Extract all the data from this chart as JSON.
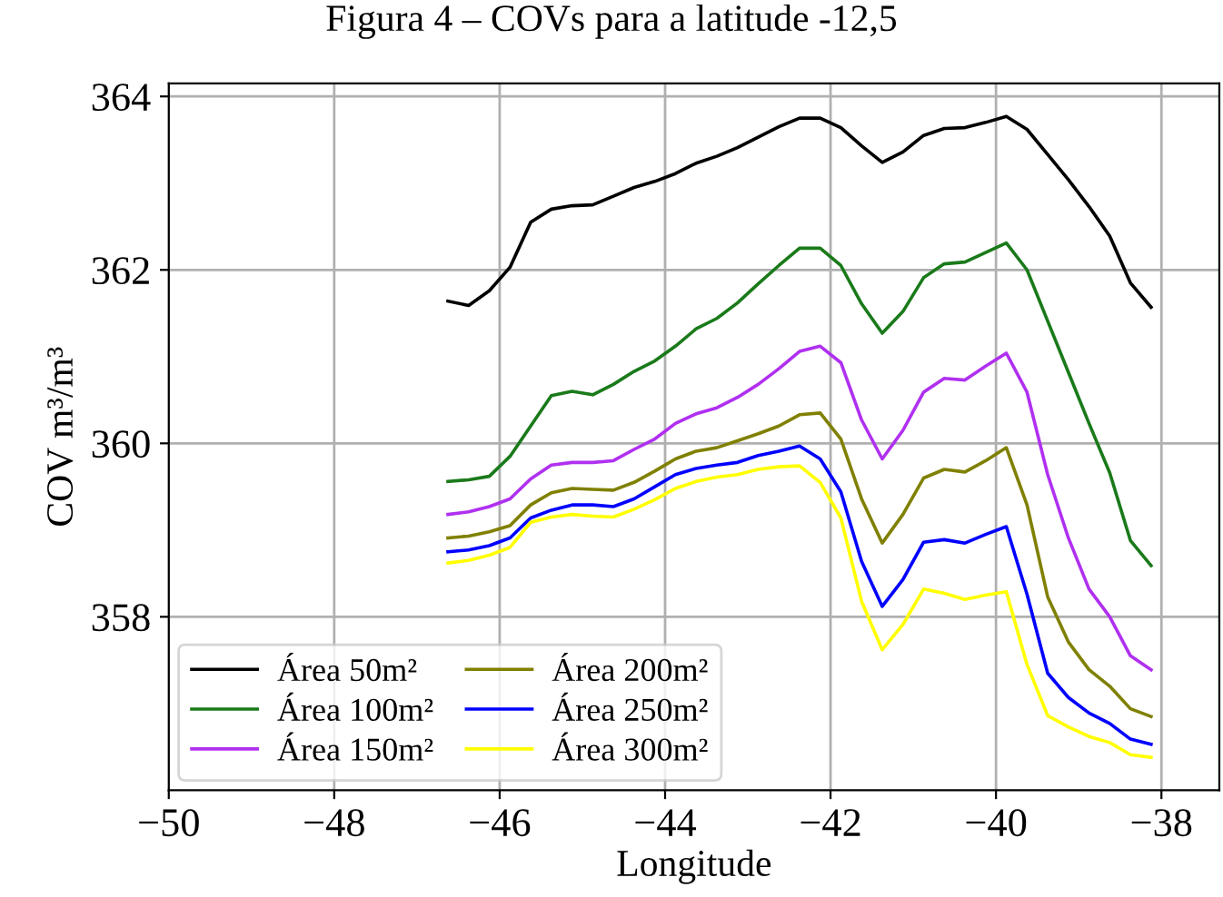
{
  "chart_data": {
    "type": "line",
    "title": "Figura 4 – COVs para a latitude -12,5",
    "xlabel": "Longitude",
    "ylabel": "COV m³/m³",
    "x": [
      -46.625,
      -46.375,
      -46.125,
      -45.875,
      -45.625,
      -45.375,
      -45.125,
      -44.875,
      -44.625,
      -44.375,
      -44.125,
      -43.875,
      -43.625,
      -43.375,
      -43.125,
      -42.875,
      -42.625,
      -42.375,
      -42.125,
      -41.875,
      -41.625,
      -41.375,
      -41.125,
      -40.875,
      -40.625,
      -40.375,
      -40.125,
      -39.875,
      -39.625,
      -39.375,
      -39.125,
      -38.875,
      -38.625,
      -38.375,
      -38.125
    ],
    "series": [
      {
        "name": "Área 50m²",
        "color": "#000000",
        "values": [
          361.64,
          361.59,
          361.76,
          362.03,
          362.55,
          362.7,
          362.74,
          362.75,
          362.85,
          362.95,
          363.02,
          363.11,
          363.23,
          363.31,
          363.41,
          363.53,
          363.65,
          363.75,
          363.75,
          363.64,
          363.43,
          363.24,
          363.36,
          363.55,
          363.63,
          363.64,
          363.7,
          363.77,
          363.62,
          363.33,
          363.04,
          362.73,
          362.39,
          361.85,
          361.57
        ]
      },
      {
        "name": "Área 100m²",
        "color": "#1a7a1a",
        "values": [
          359.56,
          359.58,
          359.62,
          359.85,
          360.2,
          360.55,
          360.6,
          360.56,
          360.68,
          360.83,
          360.95,
          361.12,
          361.32,
          361.44,
          361.62,
          361.84,
          362.05,
          362.25,
          362.25,
          362.05,
          361.61,
          361.27,
          361.52,
          361.91,
          362.07,
          362.09,
          362.2,
          362.31,
          362.0,
          361.41,
          360.82,
          360.23,
          359.66,
          358.88,
          358.59
        ]
      },
      {
        "name": "Área 150m²",
        "color": "#b030f0",
        "values": [
          359.18,
          359.21,
          359.27,
          359.36,
          359.59,
          359.75,
          359.78,
          359.78,
          359.8,
          359.93,
          360.05,
          360.23,
          360.34,
          360.41,
          360.53,
          360.68,
          360.86,
          361.06,
          361.12,
          360.93,
          360.27,
          359.82,
          360.15,
          360.59,
          360.75,
          360.73,
          360.89,
          361.04,
          360.59,
          359.64,
          358.91,
          358.32,
          358.0,
          357.55,
          357.39
        ]
      },
      {
        "name": "Área 200m²",
        "color": "#808000",
        "values": [
          358.91,
          358.93,
          358.98,
          359.05,
          359.29,
          359.43,
          359.48,
          359.47,
          359.46,
          359.55,
          359.68,
          359.82,
          359.91,
          359.95,
          360.03,
          360.11,
          360.2,
          360.33,
          360.35,
          360.05,
          359.36,
          358.85,
          359.18,
          359.6,
          359.7,
          359.67,
          359.8,
          359.95,
          359.29,
          358.23,
          357.71,
          357.39,
          357.2,
          356.94,
          356.85
        ]
      },
      {
        "name": "Área 250m²",
        "color": "#0000ff",
        "values": [
          358.75,
          358.77,
          358.82,
          358.91,
          359.14,
          359.23,
          359.29,
          359.29,
          359.27,
          359.36,
          359.5,
          359.64,
          359.71,
          359.75,
          359.78,
          359.86,
          359.91,
          359.97,
          359.82,
          359.44,
          358.64,
          358.12,
          358.43,
          358.86,
          358.89,
          358.85,
          358.95,
          359.04,
          358.26,
          357.35,
          357.07,
          356.89,
          356.77,
          356.59,
          356.53
        ]
      },
      {
        "name": "Área 300m²",
        "color": "#ffff00",
        "values": [
          358.62,
          358.65,
          358.71,
          358.8,
          359.09,
          359.15,
          359.18,
          359.16,
          359.15,
          359.24,
          359.35,
          359.48,
          359.56,
          359.61,
          359.64,
          359.7,
          359.73,
          359.74,
          359.55,
          359.14,
          358.18,
          357.62,
          357.91,
          358.32,
          358.27,
          358.2,
          358.25,
          358.29,
          357.45,
          356.86,
          356.73,
          356.62,
          356.55,
          356.41,
          356.38
        ]
      }
    ],
    "xlim": [
      -50,
      -37.3
    ],
    "ylim": [
      356.0,
      364.15
    ],
    "xticks": [
      {
        "value": -50,
        "label": "−50"
      },
      {
        "value": -48,
        "label": "−48"
      },
      {
        "value": -46,
        "label": "−46"
      },
      {
        "value": -44,
        "label": "−44"
      },
      {
        "value": -42,
        "label": "−42"
      },
      {
        "value": -40,
        "label": "−40"
      },
      {
        "value": -38,
        "label": "−38"
      }
    ],
    "yticks": [
      358,
      360,
      362,
      364
    ],
    "grid": true,
    "legend": "lower left",
    "marker": "none",
    "line_style": "solid"
  }
}
